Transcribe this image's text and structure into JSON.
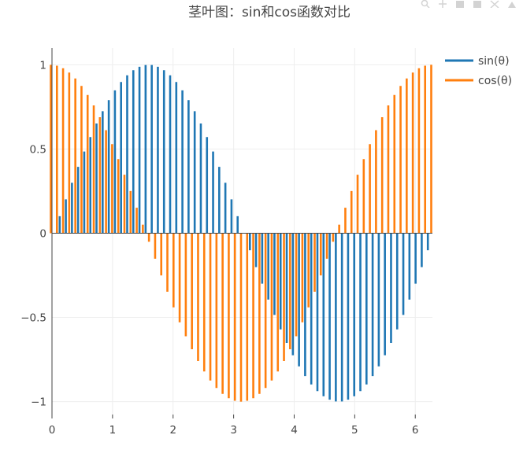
{
  "modebar": {
    "icons": [
      "zoom-icon",
      "pan-icon",
      "zoom-in-icon",
      "zoom-out-icon",
      "autoscale-icon",
      "reset-axes-icon"
    ]
  },
  "chart_data": {
    "type": "bar",
    "title": "茎叶图：sin和cos函数对比",
    "xlabel": "",
    "ylabel": "",
    "xlim": [
      0,
      6.283185
    ],
    "ylim": [
      -1.1,
      1.1
    ],
    "x_ticks": [
      "0",
      "1",
      "2",
      "3",
      "4",
      "5",
      "6"
    ],
    "y_ticks": [
      "−1",
      "−0.5",
      "0",
      "0.5",
      "1"
    ],
    "y_tick_values": [
      -1,
      -0.5,
      0,
      0.5,
      1
    ],
    "x_tick_values": [
      0,
      1,
      2,
      3,
      4,
      5,
      6
    ],
    "x_range": {
      "start": 0,
      "stop": 6.283185,
      "count": 63
    },
    "grid": true,
    "legend_position": "top-right",
    "series": [
      {
        "name": "sin(θ)",
        "function": "sin",
        "color": "#1f77b4"
      },
      {
        "name": "cos(θ)",
        "function": "cos",
        "color": "#ff7f0e"
      }
    ]
  }
}
